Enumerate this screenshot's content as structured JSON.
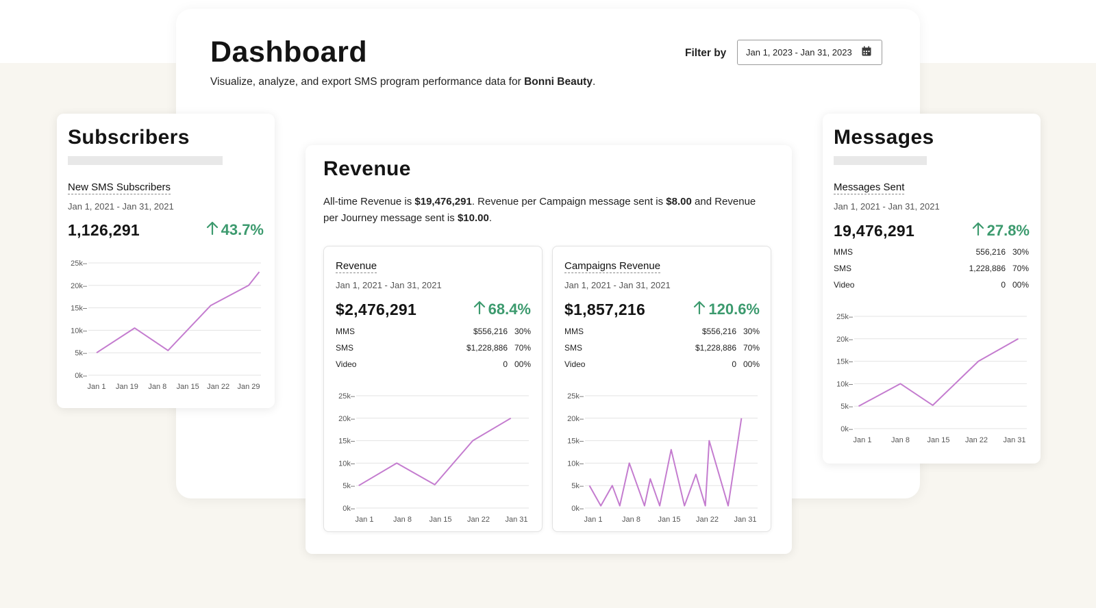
{
  "header": {
    "title": "Dashboard",
    "subtitle_prefix": "Visualize, analyze, and export SMS program performance data for ",
    "brand": "Bonni Beauty",
    "subtitle_suffix": ".",
    "filter_label": "Filter by",
    "date_filter_value": "Jan 1, 2023 - Jan 31, 2023",
    "date_filter_icon": "calendar-icon"
  },
  "subscribers": {
    "title": "Subscribers",
    "section_title": "New SMS Subscribers",
    "date_range": "Jan 1, 2021 - Jan 31, 2021",
    "value": "1,126,291",
    "delta": "43.7%"
  },
  "revenue": {
    "title": "Revenue",
    "text_1": "All-time Revenue is ",
    "all_time": "$19,476,291",
    "text_2": ". Revenue per Campaign message sent is ",
    "per_campaign": "$8.00",
    "text_3": " and Revenue per Journey message sent is ",
    "per_journey": "$10.00",
    "text_4": ".",
    "revenue_card": {
      "section_title": "Revenue",
      "date_range": "Jan 1, 2021 - Jan 31, 2021",
      "value": "$2,476,291",
      "delta": "68.4%",
      "rows": [
        {
          "name": "MMS",
          "amount": "$556,216",
          "pct": "30%"
        },
        {
          "name": "SMS",
          "amount": "$1,228,886",
          "pct": "70%"
        },
        {
          "name": "Video",
          "amount": "0",
          "pct": "00%"
        }
      ]
    },
    "campaigns_card": {
      "section_title": "Campaigns Revenue",
      "date_range": "Jan 1, 2021 - Jan 31, 2021",
      "value": "$1,857,216",
      "delta": "120.6%",
      "rows": [
        {
          "name": "MMS",
          "amount": "$556,216",
          "pct": "30%"
        },
        {
          "name": "SMS",
          "amount": "$1,228,886",
          "pct": "70%"
        },
        {
          "name": "Video",
          "amount": "0",
          "pct": "00%"
        }
      ]
    }
  },
  "messages": {
    "title": "Messages",
    "section_title": "Messages Sent",
    "date_range": "Jan 1, 2021 - Jan 31, 2021",
    "value": "19,476,291",
    "delta": "27.8%",
    "rows": [
      {
        "name": "MMS",
        "amount": "556,216",
        "pct": "30%"
      },
      {
        "name": "SMS",
        "amount": "1,228,886",
        "pct": "70%"
      },
      {
        "name": "Video",
        "amount": "0",
        "pct": "00%"
      }
    ]
  },
  "colors": {
    "line": "#c47ccf",
    "positive": "#3c9a6e",
    "gridline": "#e3e3e3"
  },
  "chart_data": [
    {
      "id": "subscribers",
      "type": "line",
      "categories": [
        "Jan 1",
        "Jan 19",
        "Jan 8",
        "Jan 15",
        "Jan 22",
        "Jan 29"
      ],
      "y_ticks": [
        "0k",
        "5k",
        "10k",
        "15k",
        "20k",
        "25k"
      ],
      "ylim": [
        0,
        25000
      ],
      "points": [
        [
          0,
          5000
        ],
        [
          1.25,
          10500
        ],
        [
          2.35,
          5500
        ],
        [
          3.75,
          15500
        ],
        [
          5.0,
          20000
        ],
        [
          5.35,
          23000
        ]
      ],
      "grid": true
    },
    {
      "id": "revenue",
      "type": "line",
      "categories": [
        "Jan 1",
        "Jan 8",
        "Jan 15",
        "Jan 22",
        "Jan 31"
      ],
      "y_ticks": [
        "0k",
        "5k",
        "10k",
        "15k",
        "20k",
        "25k"
      ],
      "ylim": [
        0,
        25000
      ],
      "points": [
        [
          -0.15,
          5000
        ],
        [
          0.85,
          10000
        ],
        [
          1.85,
          5200
        ],
        [
          2.85,
          15000
        ],
        [
          3.85,
          20000
        ]
      ],
      "grid": true
    },
    {
      "id": "campaigns",
      "type": "line",
      "categories": [
        "Jan 1",
        "Jan 8",
        "Jan 15",
        "Jan 22",
        "Jan 31"
      ],
      "y_ticks": [
        "0k",
        "5k",
        "10k",
        "15k",
        "20k",
        "25k"
      ],
      "ylim": [
        0,
        25000
      ],
      "points": [
        [
          -0.1,
          5000
        ],
        [
          0.2,
          500
        ],
        [
          0.5,
          5000
        ],
        [
          0.7,
          500
        ],
        [
          0.95,
          10000
        ],
        [
          1.35,
          500
        ],
        [
          1.5,
          6500
        ],
        [
          1.75,
          500
        ],
        [
          2.05,
          13000
        ],
        [
          2.4,
          500
        ],
        [
          2.7,
          7500
        ],
        [
          2.95,
          500
        ],
        [
          3.05,
          15000
        ],
        [
          3.55,
          500
        ],
        [
          3.9,
          20000
        ]
      ],
      "grid": true
    },
    {
      "id": "messages",
      "type": "line",
      "categories": [
        "Jan 1",
        "Jan 8",
        "Jan 15",
        "Jan 22",
        "Jan 31"
      ],
      "y_ticks": [
        "0k",
        "5k",
        "10k",
        "15k",
        "20k",
        "25k"
      ],
      "ylim": [
        0,
        25000
      ],
      "points": [
        [
          -0.1,
          5000
        ],
        [
          1.0,
          10000
        ],
        [
          1.85,
          5200
        ],
        [
          3.05,
          15000
        ],
        [
          4.1,
          20000
        ]
      ],
      "grid": true
    }
  ]
}
